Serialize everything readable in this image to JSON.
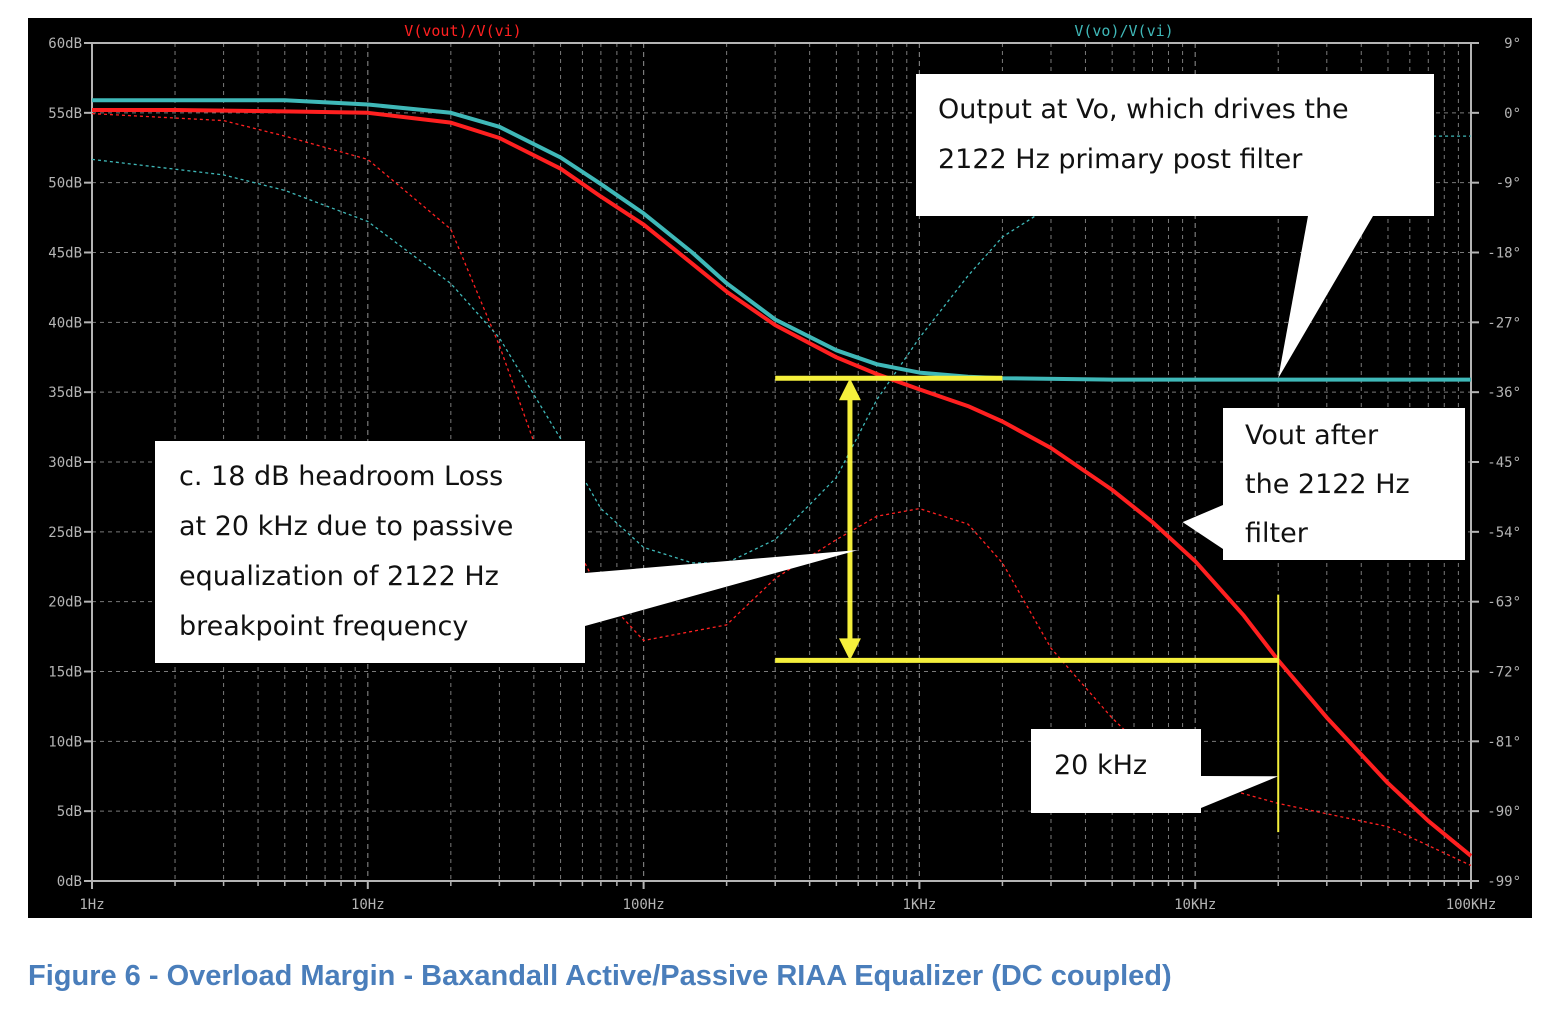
{
  "caption": "Figure 6 - Overload Margin - Baxandall  Active/Passive RIAA Equalizer (DC coupled)",
  "colors": {
    "background": "#000000",
    "axis": "#b4b4b4",
    "grid": "#7a7a7a",
    "vout": "#ff2020",
    "vo": "#3fb8b8",
    "highlight": "#f5f03c",
    "callout": "#ffffff"
  },
  "chart_data": {
    "type": "line",
    "xscale": "log",
    "xlim": [
      1,
      100000
    ],
    "ylim": [
      0,
      60
    ],
    "y2lim": [
      -99,
      9
    ],
    "grid": true,
    "x_ticks": [
      {
        "value": 1,
        "label": "1Hz"
      },
      {
        "value": 10,
        "label": "10Hz"
      },
      {
        "value": 100,
        "label": "100Hz"
      },
      {
        "value": 1000,
        "label": "1KHz"
      },
      {
        "value": 10000,
        "label": "10KHz"
      },
      {
        "value": 100000,
        "label": "100KHz"
      }
    ],
    "y_ticks": [
      {
        "value": 0,
        "label": "0dB"
      },
      {
        "value": 5,
        "label": "5dB"
      },
      {
        "value": 10,
        "label": "10dB"
      },
      {
        "value": 15,
        "label": "15dB"
      },
      {
        "value": 20,
        "label": "20dB"
      },
      {
        "value": 25,
        "label": "25dB"
      },
      {
        "value": 30,
        "label": "30dB"
      },
      {
        "value": 35,
        "label": "35dB"
      },
      {
        "value": 40,
        "label": "40dB"
      },
      {
        "value": 45,
        "label": "45dB"
      },
      {
        "value": 50,
        "label": "50dB"
      },
      {
        "value": 55,
        "label": "55dB"
      },
      {
        "value": 60,
        "label": "60dB"
      }
    ],
    "y2_ticks": [
      {
        "value": -99,
        "label": "-99°"
      },
      {
        "value": -90,
        "label": "-90°"
      },
      {
        "value": -81,
        "label": "-81°"
      },
      {
        "value": -72,
        "label": "-72°"
      },
      {
        "value": -63,
        "label": "-63°"
      },
      {
        "value": -54,
        "label": "-54°"
      },
      {
        "value": -45,
        "label": "-45°"
      },
      {
        "value": -36,
        "label": "-36°"
      },
      {
        "value": -27,
        "label": "-27°"
      },
      {
        "value": -18,
        "label": "-18°"
      },
      {
        "value": -9,
        "label": "-9°"
      },
      {
        "value": 0,
        "label": "0°"
      },
      {
        "value": 9,
        "label": "9°"
      }
    ],
    "series": [
      {
        "name": "V(vout)/V(vi)",
        "color": "#ff2020",
        "magnitude_db": [
          [
            1,
            55.2
          ],
          [
            2,
            55.2
          ],
          [
            5,
            55.1
          ],
          [
            10,
            55
          ],
          [
            20,
            54.3
          ],
          [
            30,
            53.2
          ],
          [
            50,
            51
          ],
          [
            70,
            49
          ],
          [
            100,
            47
          ],
          [
            150,
            44.2
          ],
          [
            200,
            42.2
          ],
          [
            300,
            39.8
          ],
          [
            500,
            37.5
          ],
          [
            700,
            36.3
          ],
          [
            1000,
            35.2
          ],
          [
            1500,
            34
          ],
          [
            2000,
            32.9
          ],
          [
            3000,
            31
          ],
          [
            5000,
            28
          ],
          [
            7000,
            25.7
          ],
          [
            10000,
            22.9
          ],
          [
            15000,
            19
          ],
          [
            20000,
            15.8
          ],
          [
            30000,
            11.7
          ],
          [
            50000,
            7
          ],
          [
            70000,
            4.3
          ],
          [
            100000,
            1.8
          ]
        ],
        "phase_deg": [
          [
            1,
            -0.1
          ],
          [
            3,
            -1
          ],
          [
            5,
            -3
          ],
          [
            10,
            -6
          ],
          [
            20,
            -15
          ],
          [
            30,
            -30
          ],
          [
            50,
            -52
          ],
          [
            70,
            -62
          ],
          [
            100,
            -68
          ],
          [
            200,
            -66
          ],
          [
            300,
            -60
          ],
          [
            500,
            -55
          ],
          [
            700,
            -52
          ],
          [
            1000,
            -51
          ],
          [
            1500,
            -53
          ],
          [
            2000,
            -58
          ],
          [
            3000,
            -69
          ],
          [
            5000,
            -78
          ],
          [
            7000,
            -83
          ],
          [
            10000,
            -86
          ],
          [
            20000,
            -89
          ],
          [
            50000,
            -92
          ],
          [
            100000,
            -97
          ]
        ]
      },
      {
        "name": "V(vo)/V(vi)",
        "color": "#3fb8b8",
        "magnitude_db": [
          [
            1,
            55.9
          ],
          [
            2,
            55.9
          ],
          [
            5,
            55.9
          ],
          [
            10,
            55.6
          ],
          [
            20,
            55
          ],
          [
            30,
            54
          ],
          [
            50,
            51.8
          ],
          [
            70,
            49.9
          ],
          [
            100,
            47.8
          ],
          [
            150,
            45
          ],
          [
            200,
            42.8
          ],
          [
            300,
            40.2
          ],
          [
            500,
            38
          ],
          [
            700,
            37
          ],
          [
            1000,
            36.4
          ],
          [
            1500,
            36.1
          ],
          [
            2000,
            36
          ],
          [
            5000,
            35.9
          ],
          [
            10000,
            35.9
          ],
          [
            100000,
            35.9
          ]
        ],
        "phase_deg": [
          [
            1,
            -6
          ],
          [
            3,
            -8
          ],
          [
            5,
            -10
          ],
          [
            10,
            -14
          ],
          [
            20,
            -22
          ],
          [
            30,
            -29
          ],
          [
            50,
            -42
          ],
          [
            70,
            -51
          ],
          [
            100,
            -56
          ],
          [
            150,
            -58
          ],
          [
            200,
            -58
          ],
          [
            300,
            -55
          ],
          [
            500,
            -47
          ],
          [
            700,
            -37
          ],
          [
            1000,
            -29
          ],
          [
            1500,
            -21
          ],
          [
            2000,
            -16
          ],
          [
            3000,
            -12
          ],
          [
            5000,
            -9
          ],
          [
            10000,
            -6
          ],
          [
            20000,
            -4
          ],
          [
            50000,
            -3
          ],
          [
            100000,
            -3
          ]
        ]
      }
    ],
    "annotations": [
      {
        "kind": "callout",
        "text_lines": [
          "Output at Vo, which drives the",
          "2122 Hz primary post filter"
        ],
        "pointer_to": [
          20000,
          36
        ]
      },
      {
        "kind": "callout",
        "text_lines": [
          "Vout after",
          "the 2122 Hz",
          "filter"
        ],
        "pointer_to": [
          9000,
          25.7
        ]
      },
      {
        "kind": "callout",
        "text_lines": [
          "c. 18 dB headroom Loss",
          "at 20 kHz due to passive",
          "equalization of 2122 Hz",
          "breakpoint frequency"
        ],
        "pointer_to": [
          600,
          23.7
        ]
      },
      {
        "kind": "callout",
        "text_lines": [
          "20 kHz"
        ],
        "pointer_to": [
          20000,
          7.5
        ]
      },
      {
        "kind": "hline",
        "x": [
          300,
          2000
        ],
        "y": 36
      },
      {
        "kind": "hline",
        "x": [
          300,
          20000
        ],
        "y": 15.8
      },
      {
        "kind": "arrow",
        "x": 560,
        "y": [
          15.8,
          36
        ]
      },
      {
        "kind": "vline",
        "x": 20000,
        "y": [
          3.5,
          20.5
        ]
      }
    ]
  }
}
